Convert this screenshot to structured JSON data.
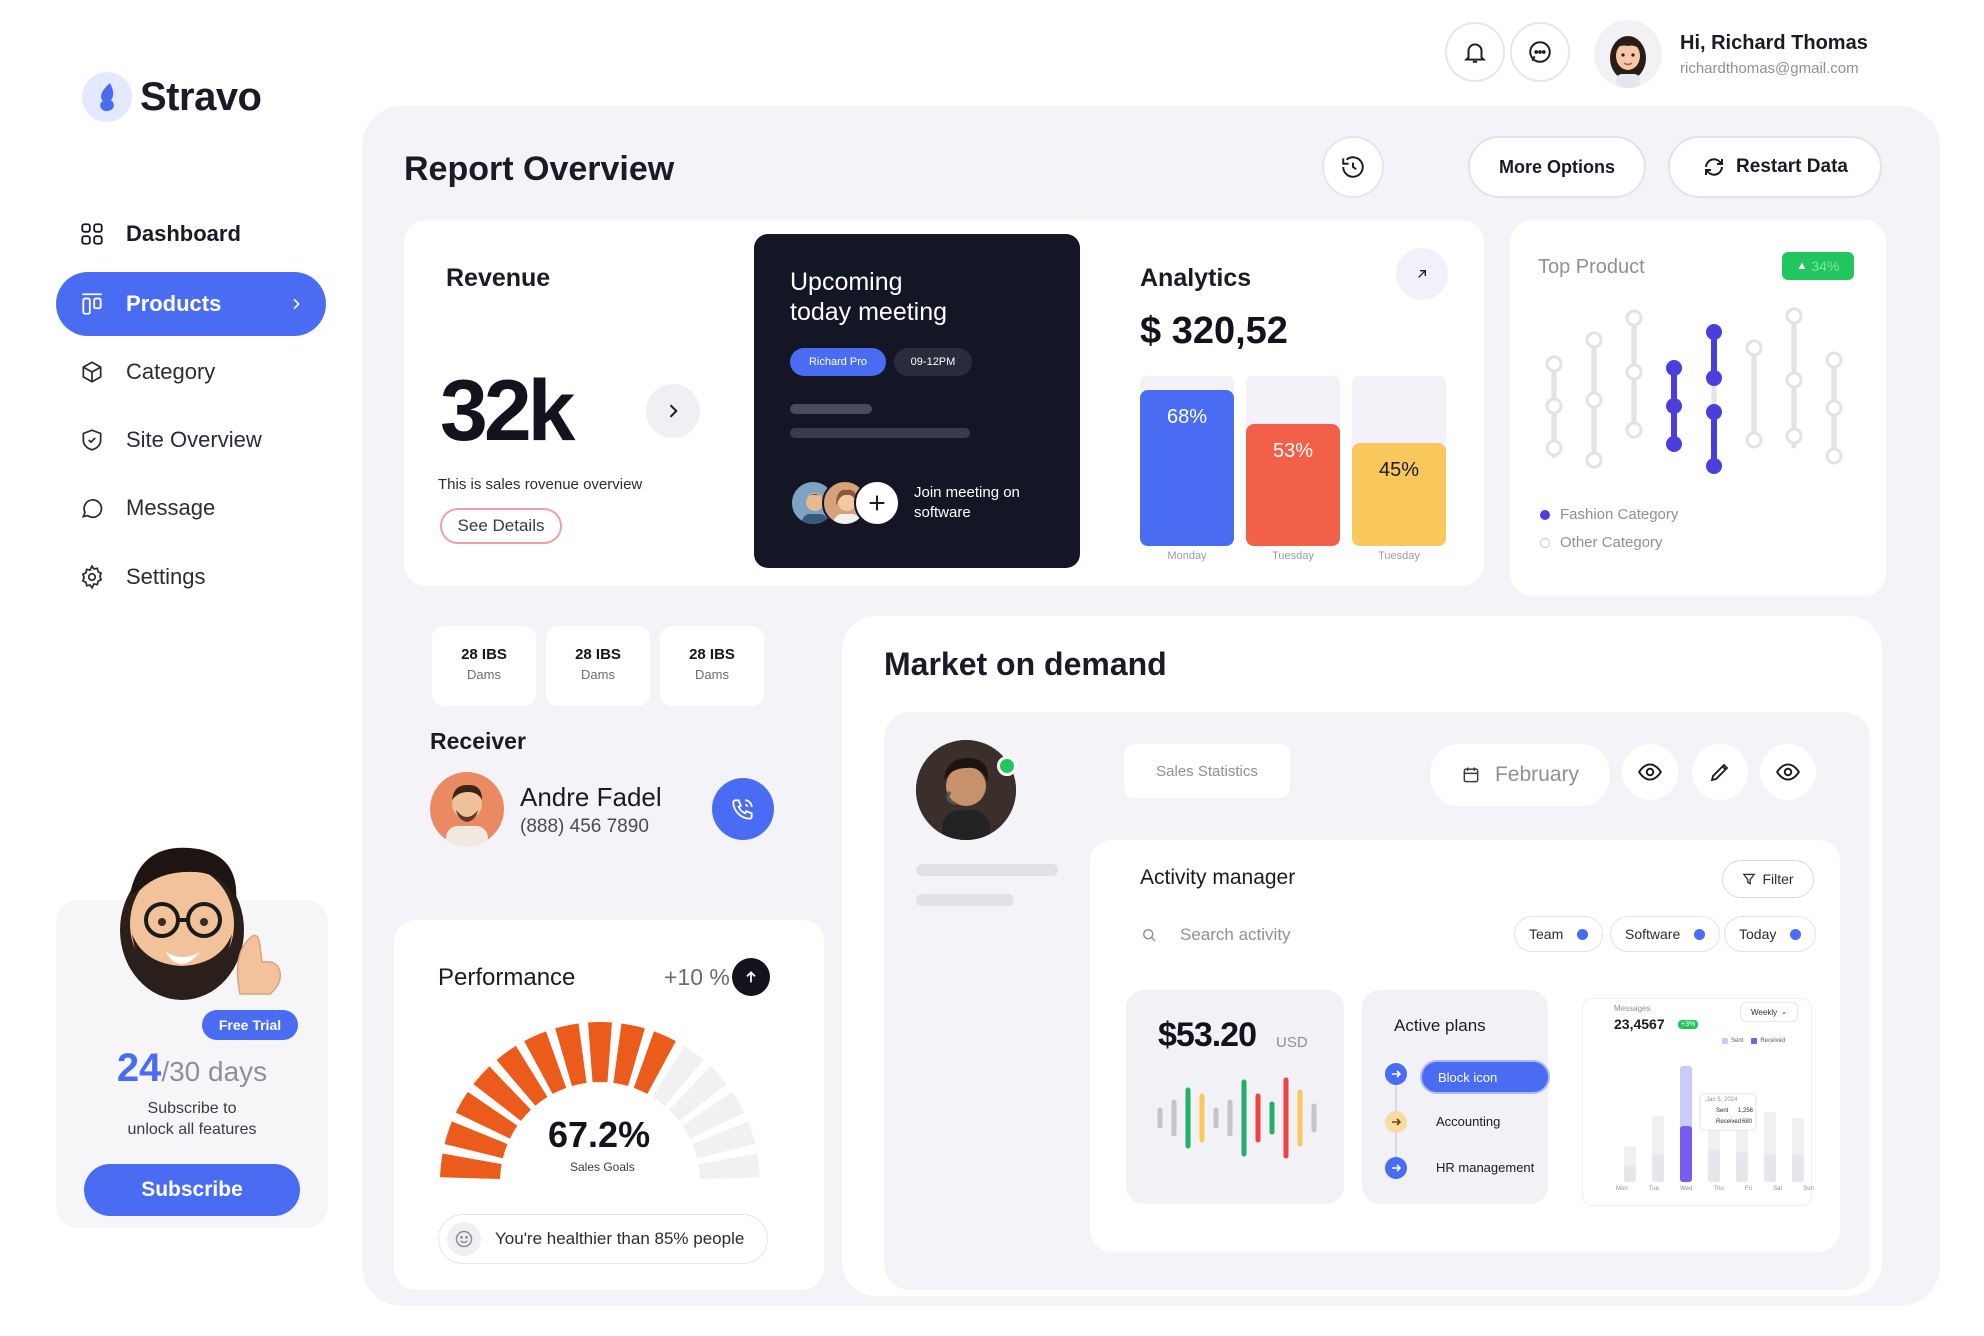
{
  "app": {
    "name": "Stravo"
  },
  "user": {
    "greeting": "Hi, Richard Thomas",
    "email": "richardthomas@gmail.com"
  },
  "sidebar": {
    "items": [
      {
        "label": "Dashboard",
        "icon": "grid-icon"
      },
      {
        "label": "Products",
        "icon": "columns-icon",
        "active": true
      },
      {
        "label": "Category",
        "icon": "box-icon"
      },
      {
        "label": "Site Overview",
        "icon": "shield-icon"
      },
      {
        "label": "Message",
        "icon": "chat-bubble-icon"
      },
      {
        "label": "Settings",
        "icon": "gear-icon"
      }
    ],
    "trial": {
      "badge": "Free Trial",
      "days_used": "24",
      "days_total": "/30 days",
      "line1": "Subscribe to",
      "line2": "unlock all features",
      "button": "Subscribe"
    }
  },
  "header": {
    "title": "Report Overview",
    "more_options": "More Options",
    "restart": "Restart Data"
  },
  "revenue": {
    "title": "Revenue",
    "value": "32k",
    "caption": "This is sales rovenue overview",
    "details": "See Details"
  },
  "meeting": {
    "title_line1": "Upcoming",
    "title_line2": "today meeting",
    "tag1": "Richard Pro",
    "tag2": "09-12PM",
    "join_line1": "Join meeting on",
    "join_line2": "software"
  },
  "analytics": {
    "title": "Analytics",
    "amount": "$ 320,52",
    "bars": [
      {
        "pct": "68%",
        "value": 68,
        "day": "Monday",
        "color": "#4a6cf2"
      },
      {
        "pct": "53%",
        "value": 53,
        "day": "Tuesday",
        "color": "#f2604a"
      },
      {
        "pct": "45%",
        "value": 45,
        "day": "Tuesday",
        "color": "#f9c85c"
      }
    ]
  },
  "top_product": {
    "title": "Top Product",
    "badge": "34%",
    "legend": [
      "Fashion Category",
      "Other Category"
    ]
  },
  "stats": [
    {
      "value": "28 IBS",
      "label": "Dams"
    },
    {
      "value": "28 IBS",
      "label": "Dams"
    },
    {
      "value": "28 IBS",
      "label": "Dams"
    }
  ],
  "receiver": {
    "title": "Receiver",
    "name": "Andre Fadel",
    "phone": "(888) 456 7890"
  },
  "performance": {
    "title": "Performance",
    "change": "+10 %",
    "value": "67.2%",
    "value_num": 67.2,
    "label": "Sales Goals",
    "note": "You're healthier than 85% people"
  },
  "market": {
    "title": "Market on demand",
    "sales_stats": "Sales Statistics",
    "month": "February",
    "activity": {
      "title": "Activity manager",
      "filter": "Filter",
      "search_placeholder": "Search activity",
      "tabs": [
        "Team",
        "Software",
        "Today"
      ],
      "price": "$53.20",
      "currency": "USD",
      "plans_title": "Active plans",
      "plans": [
        "Block icon",
        "Accounting",
        "HR management"
      ],
      "messages": {
        "label": "Messages",
        "value": "23,4567",
        "change": "+3%",
        "period": "Weekly",
        "legend": [
          "Sent",
          "Received"
        ],
        "tooltip_date": "Jan 5, 2024",
        "tooltip_sent_label": "Sent",
        "tooltip_sent": "1,256",
        "tooltip_recv_label": "Received",
        "tooltip_recv": "680",
        "days": [
          "Mon",
          "Tue",
          "Wed",
          "Thu",
          "Fri",
          "Sat",
          "Sun"
        ]
      }
    }
  }
}
